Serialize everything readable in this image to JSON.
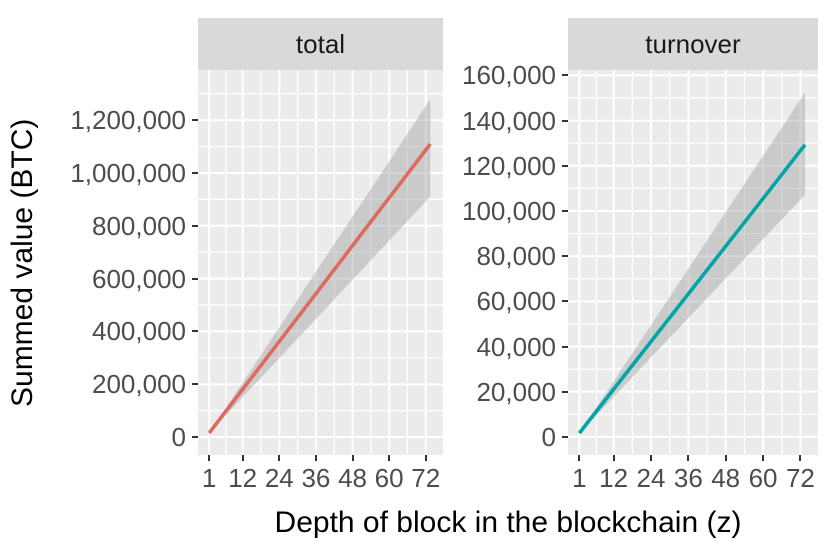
{
  "figure": {
    "y_axis_title": "Summed value (BTC)",
    "x_axis_title": "Depth of block in the blockchain (z)"
  },
  "style": {
    "background": "#FFFFFF",
    "panel_bg": "#EBEBEB",
    "strip_bg": "#D9D9D9",
    "grid_color": "#FFFFFF",
    "ribbon_color": "rgba(153,153,153,0.40)",
    "tick_mark_color": "#333333",
    "tick_label_color": "#4D4D4D",
    "strip_text_color": "#1A1A1A",
    "total_line_color": "#DC6A60",
    "turnover_line_color": "#00A5A8"
  },
  "chart_data": [
    {
      "type": "line",
      "facet": "total",
      "series_color": "#DC6A60",
      "x": [
        1,
        12,
        24,
        36,
        48,
        60,
        72,
        73.5
      ],
      "line": [
        15000,
        181000,
        362000,
        543000,
        725000,
        906000,
        1087000,
        1110000
      ],
      "ribbon_upper": [
        15000,
        207000,
        416000,
        626000,
        835000,
        1044000,
        1254000,
        1280000
      ],
      "ribbon_lower": [
        15000,
        151000,
        299000,
        447000,
        595000,
        744000,
        892000,
        910000
      ],
      "x_ticks": [
        1,
        12,
        24,
        36,
        48,
        60,
        72
      ],
      "x_tick_labels": [
        "1",
        "12",
        "24",
        "36",
        "48",
        "60",
        "72"
      ],
      "x_minor": [
        6.5,
        18,
        30,
        42,
        54,
        66
      ],
      "y_ticks": [
        0,
        200000,
        400000,
        600000,
        800000,
        1000000,
        1200000
      ],
      "y_tick_labels": [
        "0",
        "200,000",
        "400,000",
        "600,000",
        "800,000",
        "1,000,000",
        "1,200,000"
      ],
      "y_minor": [
        100000,
        300000,
        500000,
        700000,
        900000,
        1100000,
        1300000
      ],
      "xlim": [
        -2.65,
        77.65
      ],
      "ylim": [
        -68000,
        1390000
      ],
      "grid": true,
      "legend": "none"
    },
    {
      "type": "line",
      "facet": "turnover",
      "series_color": "#00A5A8",
      "x": [
        1,
        12,
        24,
        36,
        48,
        60,
        72,
        73.5
      ],
      "line": [
        1700,
        21100,
        42200,
        63300,
        84400,
        105500,
        126700,
        129300
      ],
      "ribbon_upper": [
        1700,
        24600,
        49500,
        74500,
        99500,
        124400,
        149400,
        152500
      ],
      "ribbon_lower": [
        1700,
        17700,
        35200,
        52600,
        70100,
        87500,
        105000,
        107200
      ],
      "x_ticks": [
        1,
        12,
        24,
        36,
        48,
        60,
        72
      ],
      "x_tick_labels": [
        "1",
        "12",
        "24",
        "36",
        "48",
        "60",
        "72"
      ],
      "x_minor": [
        6.5,
        18,
        30,
        42,
        54,
        66
      ],
      "y_ticks": [
        0,
        20000,
        40000,
        60000,
        80000,
        100000,
        120000,
        140000,
        160000
      ],
      "y_tick_labels": [
        "0",
        "20,000",
        "40,000",
        "60,000",
        "80,000",
        "100,000",
        "120,000",
        "140,000",
        "160,000"
      ],
      "y_minor": [
        10000,
        30000,
        50000,
        70000,
        90000,
        110000,
        130000,
        150000
      ],
      "xlim": [
        -2.65,
        77.65
      ],
      "ylim": [
        -8000,
        162400
      ],
      "grid": true,
      "legend": "none"
    }
  ]
}
